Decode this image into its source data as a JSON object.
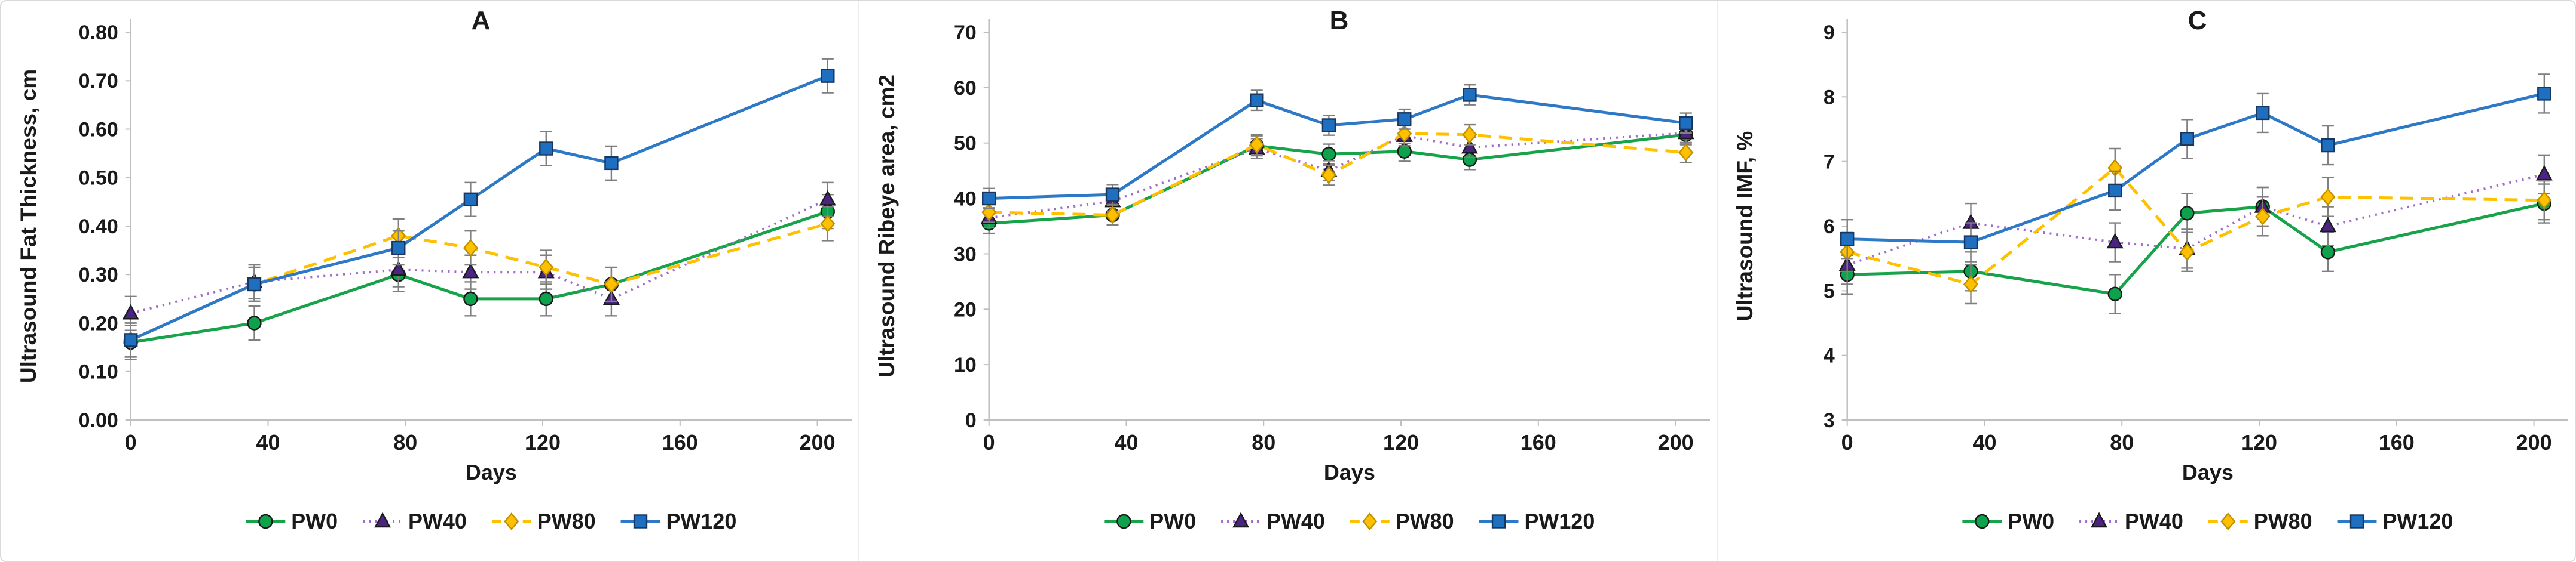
{
  "figure": {
    "background": "#FFFFFF",
    "border_color": "#D9D9D9",
    "axis_color": "#BFBFBF",
    "error_bar_color": "#7F7F7F",
    "text_color": "#1A1A1A",
    "legend_position": "bottom",
    "grid": false,
    "series_styles": [
      {
        "name": "PW0",
        "line_color": "#17A34A",
        "dash": "solid",
        "marker": "circle",
        "marker_fill": "#0FA24C",
        "marker_stroke": "#1A1A1A"
      },
      {
        "name": "PW40",
        "line_color": "#9E6BC9",
        "dash": "dotted",
        "marker": "triangle",
        "marker_fill": "#4B2482",
        "marker_stroke": "#1A1A1A"
      },
      {
        "name": "PW80",
        "line_color": "#FFC000",
        "dash": "dashed",
        "marker": "diamond",
        "marker_fill": "#FFC000",
        "marker_stroke": "#BF9000"
      },
      {
        "name": "PW120",
        "line_color": "#2E79C7",
        "dash": "solid",
        "marker": "square",
        "marker_fill": "#1F6FC0",
        "marker_stroke": "#17375E"
      }
    ]
  },
  "chart_data": [
    {
      "type": "line",
      "panel_label": "A",
      "ylabel": "Ultrasound Fat Thickness, cm",
      "xlabel": "Days",
      "ylim": [
        0,
        0.8
      ],
      "ytick_step": 0.1,
      "ytick_decimals": 2,
      "xlim": [
        0,
        210
      ],
      "x_ticks": [
        0,
        40,
        80,
        120,
        160,
        200
      ],
      "x": [
        0,
        36,
        78,
        99,
        121,
        140,
        203
      ],
      "series": [
        {
          "name": "PW0",
          "values": [
            0.16,
            0.2,
            0.3,
            0.25,
            0.25,
            0.28,
            0.43
          ],
          "err": 0.035
        },
        {
          "name": "PW40",
          "values": [
            0.22,
            0.285,
            0.31,
            0.305,
            0.305,
            0.25,
            0.455
          ],
          "err": 0.035
        },
        {
          "name": "PW80",
          "values": [
            0.165,
            0.28,
            0.38,
            0.355,
            0.315,
            0.28,
            0.405
          ],
          "err": 0.035
        },
        {
          "name": "PW120",
          "values": [
            0.165,
            0.28,
            0.355,
            0.455,
            0.56,
            0.53,
            0.71
          ],
          "err": 0.035
        }
      ]
    },
    {
      "type": "line",
      "panel_label": "B",
      "ylabel": "Ultrasound Ribeye area, cm2",
      "xlabel": "Days",
      "ylim": [
        0,
        70
      ],
      "ytick_step": 10,
      "ytick_decimals": 0,
      "xlim": [
        0,
        210
      ],
      "x_ticks": [
        0,
        40,
        80,
        120,
        160,
        200
      ],
      "x": [
        0,
        36,
        78,
        99,
        121,
        140,
        203
      ],
      "series": [
        {
          "name": "PW0",
          "values": [
            35.5,
            37.0,
            49.5,
            48.0,
            48.5,
            47.0,
            51.5
          ],
          "err": 1.8
        },
        {
          "name": "PW40",
          "values": [
            36.5,
            39.5,
            49.0,
            45.0,
            51.3,
            49.2,
            51.8
          ],
          "err": 1.8
        },
        {
          "name": "PW80",
          "values": [
            37.5,
            37.0,
            49.7,
            44.2,
            51.7,
            51.5,
            48.3
          ],
          "err": 1.8
        },
        {
          "name": "PW120",
          "values": [
            40.0,
            40.7,
            57.7,
            53.2,
            54.3,
            58.7,
            53.6
          ],
          "err": 1.8
        }
      ]
    },
    {
      "type": "line",
      "panel_label": "C",
      "ylabel": "Ultrasound IMF, %",
      "xlabel": "Days",
      "ylim": [
        3,
        9
      ],
      "ytick_step": 1,
      "ytick_decimals": 0,
      "xlim": [
        0,
        210
      ],
      "x_ticks": [
        0,
        40,
        80,
        120,
        160,
        200
      ],
      "x": [
        0,
        36,
        78,
        99,
        121,
        140,
        203
      ],
      "series": [
        {
          "name": "PW0",
          "values": [
            5.25,
            5.3,
            4.95,
            6.2,
            6.3,
            5.6,
            6.35
          ],
          "err": 0.3
        },
        {
          "name": "PW40",
          "values": [
            5.4,
            6.05,
            5.75,
            5.65,
            6.3,
            6.0,
            6.8
          ],
          "err": 0.3
        },
        {
          "name": "PW80",
          "values": [
            5.6,
            5.1,
            6.9,
            5.6,
            6.15,
            6.45,
            6.4
          ],
          "err": 0.3
        },
        {
          "name": "PW120",
          "values": [
            5.8,
            5.75,
            6.55,
            7.35,
            7.75,
            7.25,
            8.05
          ],
          "err": 0.3
        }
      ]
    }
  ]
}
